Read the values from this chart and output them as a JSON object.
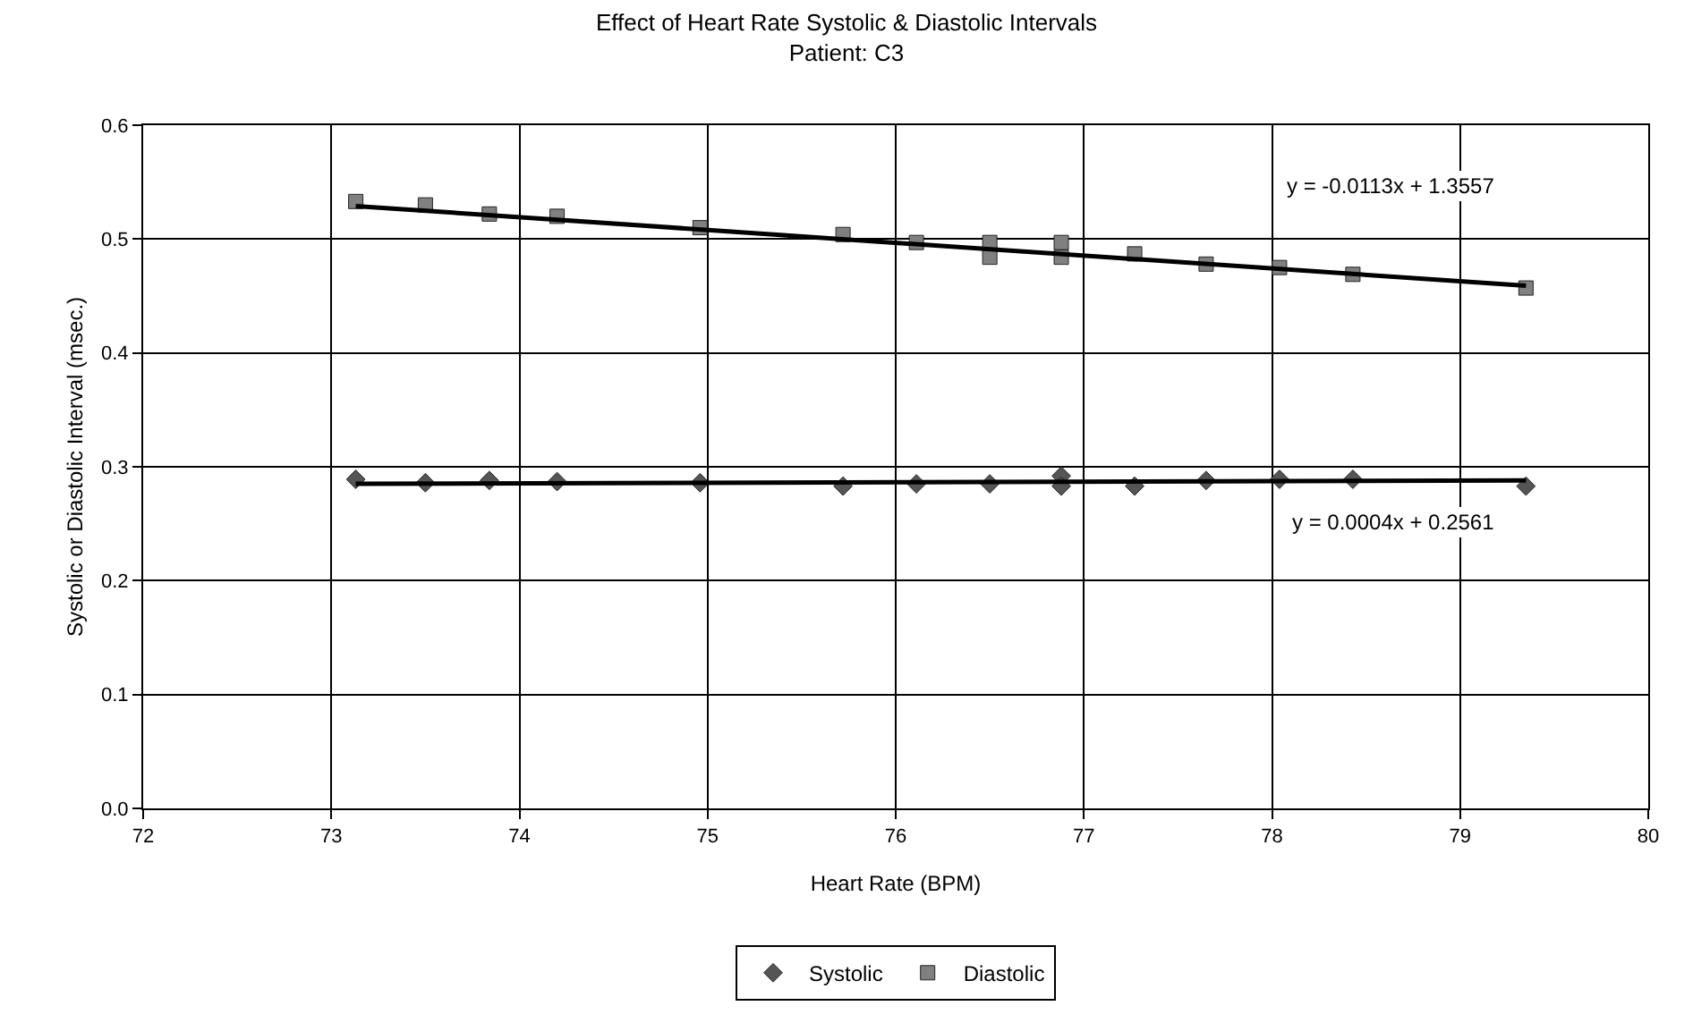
{
  "chart_data": {
    "type": "scatter",
    "title": "Effect of Heart Rate Systolic & Diastolic Intervals",
    "subtitle": "Patient: C3",
    "xlabel": "Heart Rate (BPM)",
    "ylabel": "Systolic or Diastolic Interval (msec.)",
    "xlim": [
      72,
      80
    ],
    "xticks": [
      72,
      73,
      74,
      75,
      76,
      77,
      78,
      79,
      80
    ],
    "ylim": [
      0,
      0.6
    ],
    "yticks": [
      {
        "value": 0,
        "label": "0.0"
      },
      0.1,
      0.2,
      0.3,
      0.4,
      0.5,
      0.6
    ],
    "grid": true,
    "legend": "bottom",
    "series": [
      {
        "name": "Systolic",
        "color": "#555555",
        "marker": "diamond",
        "x": [
          73.13,
          73.5,
          73.84,
          74.2,
          74.96,
          75.72,
          76.11,
          76.5,
          76.88,
          76.88,
          77.27,
          77.65,
          78.04,
          78.43,
          79.35
        ],
        "values": [
          0.289,
          0.286,
          0.288,
          0.287,
          0.286,
          0.283,
          0.285,
          0.285,
          0.292,
          0.283,
          0.283,
          0.288,
          0.289,
          0.289,
          0.283
        ]
      },
      {
        "name": "Diastolic",
        "color": "#808080",
        "marker": "square",
        "x": [
          73.13,
          73.5,
          73.84,
          74.2,
          74.96,
          75.72,
          76.11,
          76.5,
          76.5,
          76.88,
          76.88,
          77.27,
          77.65,
          78.04,
          78.43,
          79.35
        ],
        "values": [
          0.533,
          0.53,
          0.522,
          0.52,
          0.51,
          0.504,
          0.497,
          0.497,
          0.484,
          0.497,
          0.484,
          0.487,
          0.478,
          0.475,
          0.469,
          0.457
        ]
      },
      {
        "type": "line",
        "color": "#000000",
        "marker": "none",
        "x": [
          73.13,
          79.35
        ],
        "values": [
          0.285,
          0.288
        ]
      },
      {
        "type": "line",
        "color": "#000000",
        "marker": "none",
        "x": [
          73.13,
          79.35
        ],
        "values": [
          0.529,
          0.459
        ]
      }
    ],
    "annotations": [
      "y = -0.0113x + 1.3557",
      "y = 0.0004x + 0.2561"
    ]
  }
}
